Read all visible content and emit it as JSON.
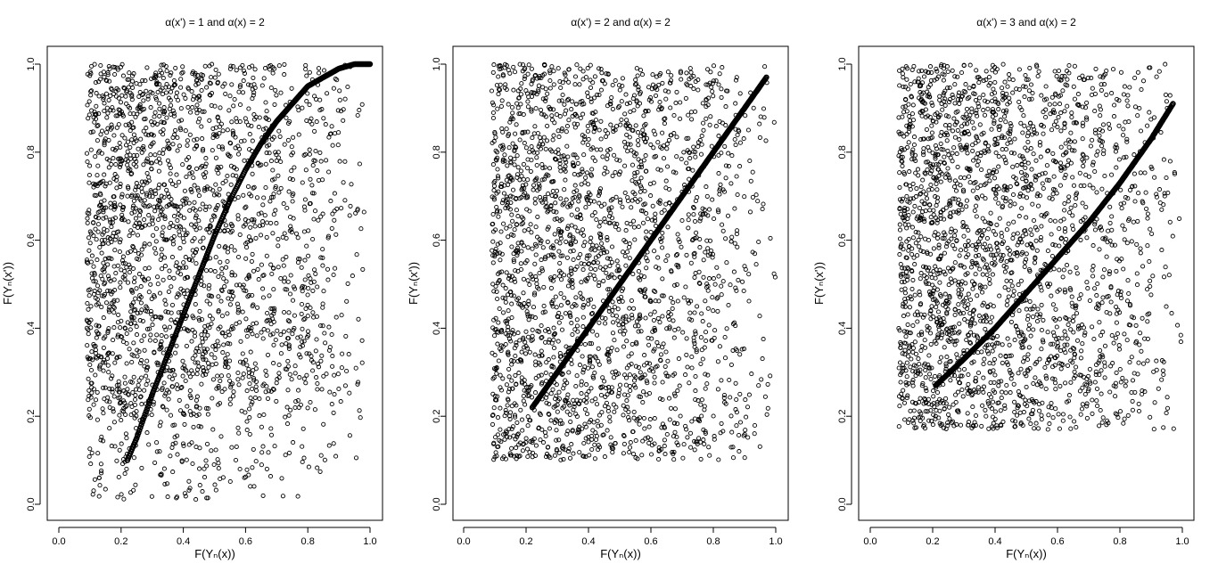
{
  "chart_data": [
    {
      "type": "scatter",
      "title": "α(x') = 1 and α(x) = 2",
      "xlabel": "F(Yₙ(x))",
      "ylabel": "F(Yₙ(x'))",
      "xlim": [
        0.0,
        1.0
      ],
      "ylim": [
        0.0,
        1.0
      ],
      "xticks": [
        "0.0",
        "0.2",
        "0.4",
        "0.6",
        "0.8",
        "1.0"
      ],
      "yticks": [
        "0.0",
        "0.2",
        "0.4",
        "0.6",
        "0.8",
        "1.0"
      ],
      "grid": false,
      "marker": "open-circle",
      "x_min_observed": 0.09,
      "y_min_observed": 0.01,
      "point_cloud": "dense points filling x 0.1–1.0, y 0.0–1.0",
      "curve": {
        "name": "",
        "x": [
          0.22,
          0.25,
          0.3,
          0.35,
          0.4,
          0.45,
          0.5,
          0.55,
          0.6,
          0.65,
          0.7,
          0.75,
          0.8,
          0.85,
          0.9,
          0.95,
          1.0
        ],
        "y": [
          0.1,
          0.15,
          0.25,
          0.34,
          0.43,
          0.52,
          0.61,
          0.69,
          0.76,
          0.82,
          0.87,
          0.91,
          0.95,
          0.97,
          0.99,
          1.0,
          1.0
        ]
      }
    },
    {
      "type": "scatter",
      "title": "α(x') = 2 and α(x) = 2",
      "xlabel": "F(Yₙ(x))",
      "ylabel": "F(Yₙ(x'))",
      "xlim": [
        0.0,
        1.0
      ],
      "ylim": [
        0.0,
        1.0
      ],
      "xticks": [
        "0.0",
        "0.2",
        "0.4",
        "0.6",
        "0.8",
        "1.0"
      ],
      "yticks": [
        "0.0",
        "0.2",
        "0.4",
        "0.6",
        "0.8",
        "1.0"
      ],
      "grid": false,
      "marker": "open-circle",
      "x_min_observed": 0.09,
      "y_min_observed": 0.1,
      "point_cloud": "dense points filling x 0.1–1.0, y 0.1–1.0",
      "curve": {
        "name": "",
        "x": [
          0.22,
          0.3,
          0.4,
          0.5,
          0.6,
          0.7,
          0.8,
          0.9,
          0.97
        ],
        "y": [
          0.22,
          0.3,
          0.4,
          0.5,
          0.6,
          0.7,
          0.8,
          0.9,
          0.97
        ]
      }
    },
    {
      "type": "scatter",
      "title": "α(x') = 3 and α(x) = 2",
      "xlabel": "F(Yₙ(x))",
      "ylabel": "F(Yₙ(x'))",
      "xlim": [
        0.0,
        1.0
      ],
      "ylim": [
        0.0,
        1.0
      ],
      "xticks": [
        "0.0",
        "0.2",
        "0.4",
        "0.6",
        "0.8",
        "1.0"
      ],
      "yticks": [
        "0.0",
        "0.2",
        "0.4",
        "0.6",
        "0.8",
        "1.0"
      ],
      "grid": false,
      "marker": "open-circle",
      "x_min_observed": 0.09,
      "y_min_observed": 0.17,
      "point_cloud": "dense points filling x 0.1–1.0, y 0.17–1.0",
      "curve": {
        "name": "",
        "x": [
          0.21,
          0.3,
          0.4,
          0.5,
          0.6,
          0.7,
          0.8,
          0.9,
          0.97
        ],
        "y": [
          0.27,
          0.33,
          0.4,
          0.48,
          0.56,
          0.64,
          0.73,
          0.83,
          0.91
        ]
      }
    }
  ]
}
